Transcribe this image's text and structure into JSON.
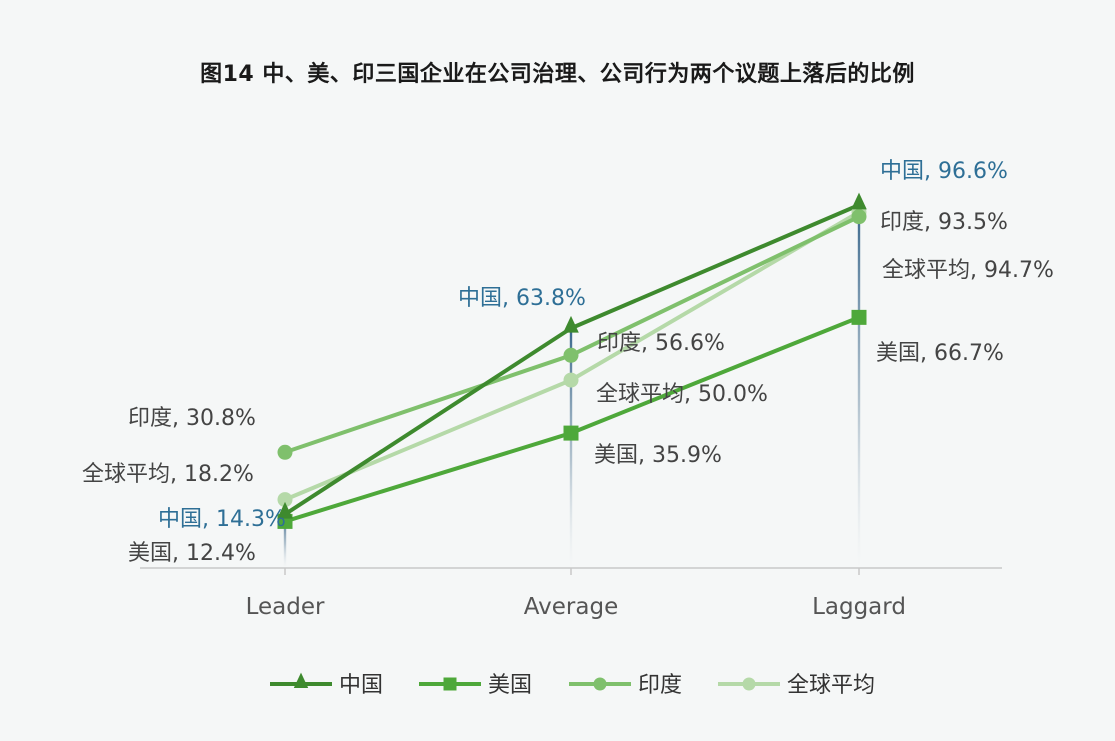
{
  "chart_data": {
    "type": "line",
    "title": "图14  中、美、印三国企业在公司治理、公司行为两个议题上落后的比例",
    "categories": [
      "Leader",
      "Average",
      "Laggard"
    ],
    "series": [
      {
        "name": "中国",
        "marker": "triangle",
        "color": "#3e8a2e",
        "values": [
          14.3,
          63.8,
          96.6
        ],
        "labels": [
          "中国, 14.3%",
          "中国, 63.8%",
          "中国, 96.6%"
        ],
        "label_color": "#2e6f96"
      },
      {
        "name": "美国",
        "marker": "square",
        "color": "#4ea83a",
        "values": [
          12.4,
          35.9,
          66.7
        ],
        "labels": [
          "美国, 12.4%",
          "美国, 35.9%",
          "美国, 66.7%"
        ],
        "label_color": "#444444"
      },
      {
        "name": "印度",
        "marker": "circle",
        "color": "#7fc06c",
        "values": [
          30.8,
          56.6,
          93.5
        ],
        "labels": [
          "印度, 30.8%",
          "印度, 56.6%",
          "印度, 93.5%"
        ],
        "label_color": "#444444"
      },
      {
        "name": "全球平均",
        "marker": "circle",
        "color": "#b5d9a8",
        "values": [
          18.2,
          50.0,
          94.7
        ],
        "labels": [
          "全球平均, 18.2%",
          "全球平均, 50.0%",
          "全球平均, 94.7%"
        ],
        "label_color": "#444444"
      }
    ],
    "ylim": [
      0,
      100
    ],
    "grid": false,
    "legend_position": "bottom-center"
  }
}
